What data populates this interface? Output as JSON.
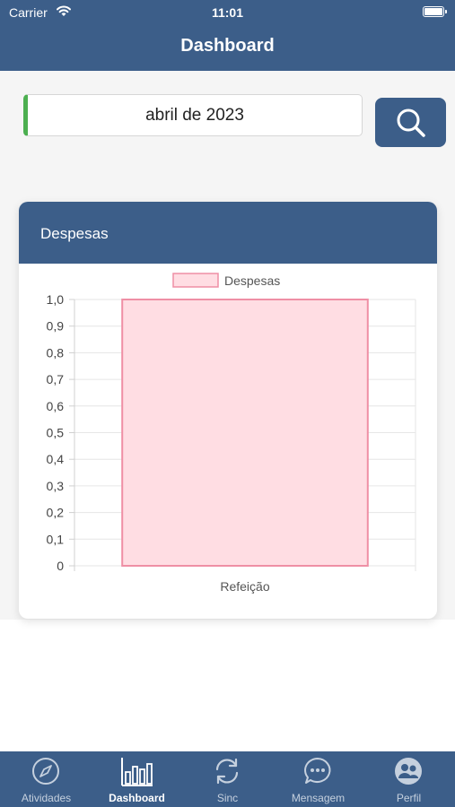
{
  "status_bar": {
    "carrier": "Carrier",
    "time": "11:01"
  },
  "nav": {
    "title": "Dashboard"
  },
  "filter": {
    "month_value": "abril de 2023"
  },
  "card": {
    "title": "Despesas"
  },
  "chart_data": {
    "type": "bar",
    "categories": [
      "Refeição"
    ],
    "series": [
      {
        "name": "Despesas",
        "values": [
          1.0
        ]
      }
    ],
    "yticks": [
      "0",
      "0,1",
      "0,2",
      "0,3",
      "0,4",
      "0,5",
      "0,6",
      "0,7",
      "0,8",
      "0,9",
      "1,0"
    ],
    "ylim": [
      0,
      1.0
    ],
    "legend": "top",
    "grid": true,
    "colors": {
      "fill": "#ffdde3",
      "stroke": "#ef8fa5"
    }
  },
  "tabbar": {
    "items": [
      {
        "label": "Atividades",
        "icon": "compass-icon"
      },
      {
        "label": "Dashboard",
        "icon": "bar-chart-icon"
      },
      {
        "label": "Sinc",
        "icon": "sync-icon"
      },
      {
        "label": "Mensagem",
        "icon": "chat-icon"
      },
      {
        "label": "Perfil",
        "icon": "profile-icon"
      }
    ],
    "active_index": 1
  },
  "colors": {
    "primary": "#3c5e89",
    "accent_green": "#4caf50"
  }
}
